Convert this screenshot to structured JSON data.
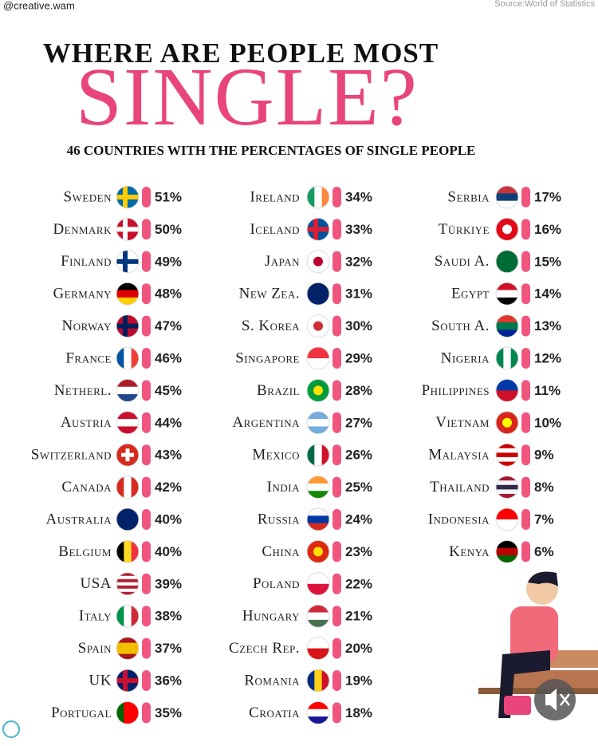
{
  "header": {
    "handle": "@creative.wam",
    "source": "Source:World of Statistics",
    "title": "WHERE ARE PEOPLE MOST",
    "headline": "SINGLE?",
    "subtitle": "46 COUNTRIES WITH THE PERCENTAGES OF SINGLE PEOPLE"
  },
  "columns": [
    [
      {
        "country": "Sweden",
        "percent": "51%"
      },
      {
        "country": "Denmark",
        "percent": "50%"
      },
      {
        "country": "Finland",
        "percent": "49%"
      },
      {
        "country": "Germany",
        "percent": "48%"
      },
      {
        "country": "Norway",
        "percent": "47%"
      },
      {
        "country": "France",
        "percent": "46%"
      },
      {
        "country": "Netherl.",
        "percent": "45%"
      },
      {
        "country": "Austria",
        "percent": "44%"
      },
      {
        "country": "Switzerland",
        "percent": "43%"
      },
      {
        "country": "Canada",
        "percent": "42%"
      },
      {
        "country": "Australia",
        "percent": "40%"
      },
      {
        "country": "Belgium",
        "percent": "40%"
      },
      {
        "country": "USA",
        "percent": "39%"
      },
      {
        "country": "Italy",
        "percent": "38%"
      },
      {
        "country": "Spain",
        "percent": "37%"
      },
      {
        "country": "UK",
        "percent": "36%"
      },
      {
        "country": "Portugal",
        "percent": "35%"
      }
    ],
    [
      {
        "country": "Ireland",
        "percent": "34%"
      },
      {
        "country": "Iceland",
        "percent": "33%"
      },
      {
        "country": "Japan",
        "percent": "32%"
      },
      {
        "country": "New Zea.",
        "percent": "31%"
      },
      {
        "country": "S. Korea",
        "percent": "30%"
      },
      {
        "country": "Singapore",
        "percent": "29%"
      },
      {
        "country": "Brazil",
        "percent": "28%"
      },
      {
        "country": "Argentina",
        "percent": "27%"
      },
      {
        "country": "Mexico",
        "percent": "26%"
      },
      {
        "country": "India",
        "percent": "25%"
      },
      {
        "country": "Russia",
        "percent": "24%"
      },
      {
        "country": "China",
        "percent": "23%"
      },
      {
        "country": "Poland",
        "percent": "22%"
      },
      {
        "country": "Hungary",
        "percent": "21%"
      },
      {
        "country": "Czech Rep.",
        "percent": "20%"
      },
      {
        "country": "Romania",
        "percent": "19%"
      },
      {
        "country": "Croatia",
        "percent": "18%"
      }
    ],
    [
      {
        "country": "Serbia",
        "percent": "17%"
      },
      {
        "country": "Türkiye",
        "percent": "16%"
      },
      {
        "country": "Saudi A.",
        "percent": "15%"
      },
      {
        "country": "Egypt",
        "percent": "14%"
      },
      {
        "country": "South A.",
        "percent": "13%"
      },
      {
        "country": "Nigeria",
        "percent": "12%"
      },
      {
        "country": "Philippines",
        "percent": "11%"
      },
      {
        "country": "Vietnam",
        "percent": "10%"
      },
      {
        "country": "Malaysia",
        "percent": "9%"
      },
      {
        "country": "Thailand",
        "percent": "8%"
      },
      {
        "country": "Indonesia",
        "percent": "7%"
      },
      {
        "country": "Kenya",
        "percent": "6%"
      }
    ]
  ]
}
